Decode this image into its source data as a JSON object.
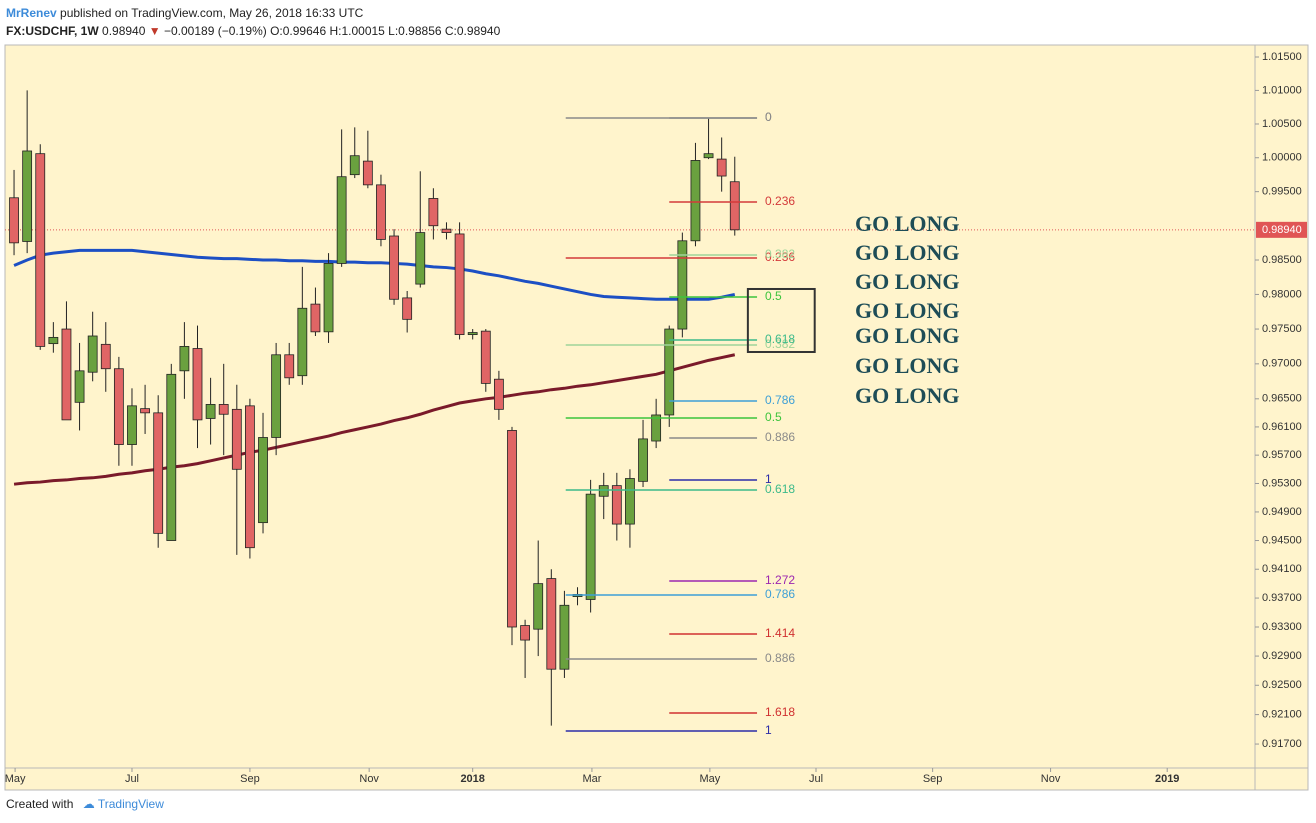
{
  "header": {
    "author": "MrRenev",
    "published": "published on TradingView.com, May 26, 2018 16:33 UTC",
    "symbol": "FX:USDCHF, 1W",
    "last": "0.98940",
    "arrow": "▼",
    "change": "−0.00189 (−0.19%)",
    "ohlc": "O:0.99646 H:1.00015 L:0.98856 C:0.98940"
  },
  "footer": {
    "created": "Created with",
    "brand": "TradingView"
  },
  "chart_data": {
    "type": "candlestick",
    "log_scale": true,
    "up_color": "#6aa13f",
    "down_color": "#e06565",
    "background": "#fff4cc",
    "categories": [
      null,
      null,
      null,
      null,
      null,
      null,
      null,
      null,
      null,
      null,
      null,
      null,
      null,
      null,
      null,
      null,
      null,
      null,
      null,
      null,
      null,
      null,
      null,
      null,
      null,
      null,
      null,
      null,
      null,
      null,
      null,
      null,
      null,
      null,
      null,
      null,
      null,
      null,
      null,
      null,
      null,
      null,
      null,
      null,
      null,
      null,
      null,
      null,
      null,
      null,
      null,
      null,
      null,
      null,
      null,
      null
    ],
    "open": [
      0.9941,
      0.9877,
      1.0006,
      0.9729,
      0.975,
      0.9645,
      0.9688,
      0.9728,
      0.9693,
      0.9585,
      0.9636,
      0.963,
      0.945,
      0.969,
      0.9722,
      0.9622,
      0.9642,
      0.9635,
      0.964,
      0.9475,
      0.9595,
      0.9713,
      0.9683,
      0.9786,
      0.9746,
      0.9845,
      0.9975,
      0.9995,
      0.996,
      0.9885,
      0.9795,
      0.9815,
      0.994,
      0.9895,
      0.9888,
      0.9742,
      0.9747,
      0.9678,
      0.9605,
      0.9332,
      0.9327,
      0.9397,
      0.9272,
      0.9372,
      0.9368,
      0.9512,
      0.9527,
      0.9473,
      0.9533,
      0.959,
      0.9627,
      0.975,
      0.9878,
      1.0,
      0.9998,
      0.99646
    ],
    "high": [
      0.9982,
      1.01,
      1.002,
      0.976,
      0.979,
      0.973,
      0.9775,
      0.976,
      0.971,
      0.9665,
      0.967,
      0.9655,
      0.97,
      0.976,
      0.9755,
      0.968,
      0.97,
      0.967,
      0.965,
      0.963,
      0.973,
      0.973,
      0.984,
      0.981,
      0.986,
      1.0042,
      1.0045,
      1.004,
      0.9975,
      0.9895,
      0.9805,
      0.998,
      0.9955,
      0.9905,
      0.9905,
      0.975,
      0.975,
      0.969,
      0.961,
      0.934,
      0.945,
      0.941,
      0.938,
      0.9385,
      0.9535,
      0.9545,
      0.9545,
      0.955,
      0.962,
      0.965,
      0.9755,
      0.989,
      1.0022,
      1.0058,
      1.003,
      1.00015
    ],
    "low": [
      0.9857,
      0.986,
      0.972,
      0.9716,
      0.962,
      0.9605,
      0.9675,
      0.966,
      0.9555,
      0.9555,
      0.96,
      0.944,
      0.945,
      0.965,
      0.958,
      0.9585,
      0.957,
      0.943,
      0.9425,
      0.946,
      0.957,
      0.967,
      0.967,
      0.974,
      0.973,
      0.984,
      0.997,
      0.9955,
      0.987,
      0.9785,
      0.9745,
      0.981,
      0.988,
      0.988,
      0.9735,
      0.9735,
      0.966,
      0.962,
      0.9305,
      0.926,
      0.929,
      0.9195,
      0.926,
      0.936,
      0.935,
      0.948,
      0.945,
      0.944,
      0.9525,
      0.958,
      0.961,
      0.9738,
      0.987,
      0.9998,
      0.995,
      0.98856
    ],
    "close": [
      0.9875,
      1.001,
      0.9725,
      0.9738,
      0.962,
      0.969,
      0.974,
      0.9693,
      0.9585,
      0.964,
      0.963,
      0.946,
      0.9685,
      0.9725,
      0.962,
      0.9642,
      0.9628,
      0.955,
      0.944,
      0.9595,
      0.9713,
      0.968,
      0.978,
      0.9746,
      0.9845,
      0.9972,
      1.0003,
      0.996,
      0.988,
      0.9793,
      0.9764,
      0.989,
      0.99,
      0.989,
      0.9742,
      0.9745,
      0.9672,
      0.9635,
      0.933,
      0.9312,
      0.939,
      0.9272,
      0.936,
      0.9375,
      0.9515,
      0.9527,
      0.9473,
      0.9537,
      0.9593,
      0.9627,
      0.975,
      0.9878,
      0.9996,
      1.0006,
      0.9973,
      0.9894
    ],
    "series": [
      {
        "color": "#1c4fc4",
        "width": 3,
        "values": [
          0.9842,
          0.985,
          0.9857,
          0.986,
          0.9862,
          0.9864,
          0.9864,
          0.9864,
          0.9864,
          0.9864,
          0.9862,
          0.986,
          0.9858,
          0.9856,
          0.9854,
          0.9853,
          0.9852,
          0.9852,
          0.9851,
          0.985,
          0.985,
          0.9849,
          0.9849,
          0.9848,
          0.9848,
          0.9847,
          0.9847,
          0.9846,
          0.9846,
          0.9845,
          0.9844,
          0.9842,
          0.984,
          0.9839,
          0.9837,
          0.9834,
          0.983,
          0.9827,
          0.9823,
          0.9819,
          0.9816,
          0.9812,
          0.9808,
          0.9804,
          0.98,
          0.9797,
          0.9796,
          0.9795,
          0.9794,
          0.9793,
          0.9793,
          0.9793,
          0.9793,
          0.9793,
          0.9796,
          0.98
        ]
      },
      {
        "color": "#7a1a2a",
        "width": 3,
        "values": [
          0.9529,
          0.9531,
          0.9532,
          0.9534,
          0.9535,
          0.9537,
          0.9538,
          0.954,
          0.9543,
          0.9545,
          0.9548,
          0.955,
          0.9553,
          0.9555,
          0.9558,
          0.9562,
          0.9566,
          0.957,
          0.9574,
          0.9577,
          0.9581,
          0.9585,
          0.9589,
          0.9593,
          0.9597,
          0.9602,
          0.9606,
          0.961,
          0.9614,
          0.9619,
          0.9623,
          0.9628,
          0.9634,
          0.9639,
          0.9644,
          0.9647,
          0.965,
          0.9652,
          0.9655,
          0.9658,
          0.966,
          0.9663,
          0.9665,
          0.9668,
          0.967,
          0.9673,
          0.9676,
          0.9679,
          0.9682,
          0.9685,
          0.969,
          0.9695,
          0.97,
          0.9705,
          0.9709,
          0.9713
        ]
      }
    ],
    "xlim": [
      -0.69,
      94.7
    ],
    "xticks": [
      {
        "value": 0.08,
        "label": "May"
      },
      {
        "value": 9.0,
        "label": "Jul"
      },
      {
        "value": 18.0,
        "label": "Sep"
      },
      {
        "value": 27.1,
        "label": "Nov"
      },
      {
        "value": 35.0,
        "label": "2018"
      },
      {
        "value": 44.1,
        "label": "Mar"
      },
      {
        "value": 53.1,
        "label": "May"
      },
      {
        "value": 61.2,
        "label": "Jul"
      },
      {
        "value": 70.1,
        "label": "Sep"
      },
      {
        "value": 79.1,
        "label": "Nov"
      },
      {
        "value": 88.0,
        "label": "2019"
      }
    ],
    "ylim": [
      0.91376,
      1.0168
    ],
    "yticks": [
      {
        "value": 1.015,
        "label": "1.01500"
      },
      {
        "value": 1.01,
        "label": "1.01000"
      },
      {
        "value": 1.005,
        "label": "1.00500"
      },
      {
        "value": 1.0,
        "label": "1.00000"
      },
      {
        "value": 0.995,
        "label": "0.99500"
      },
      {
        "value": 0.985,
        "label": "0.98500"
      },
      {
        "value": 0.98,
        "label": "0.98000"
      },
      {
        "value": 0.975,
        "label": "0.97500"
      },
      {
        "value": 0.97,
        "label": "0.97000"
      },
      {
        "value": 0.965,
        "label": "0.96500"
      },
      {
        "value": 0.961,
        "label": "0.96100"
      },
      {
        "value": 0.957,
        "label": "0.95700"
      },
      {
        "value": 0.953,
        "label": "0.95300"
      },
      {
        "value": 0.949,
        "label": "0.94900"
      },
      {
        "value": 0.945,
        "label": "0.94500"
      },
      {
        "value": 0.941,
        "label": "0.94100"
      },
      {
        "value": 0.937,
        "label": "0.93700"
      },
      {
        "value": 0.933,
        "label": "0.93300"
      },
      {
        "value": 0.929,
        "label": "0.92900"
      },
      {
        "value": 0.925,
        "label": "0.92500"
      },
      {
        "value": 0.921,
        "label": "0.92100"
      },
      {
        "value": 0.917,
        "label": "0.91700"
      }
    ],
    "last_price": {
      "value": 0.9894,
      "label": "0.98940",
      "color": "#e05555"
    },
    "fib_sets": [
      {
        "x": [
          42.1,
          56.7
        ],
        "levels": [
          {
            "level": 0,
            "price": 1.00589,
            "color": "#8a8a8a"
          },
          {
            "level": 0.236,
            "price": 0.98529,
            "color": "#d43a3a"
          },
          {
            "level": 0.382,
            "price": 0.9727,
            "color": "#9fd49a"
          },
          {
            "level": 0.5,
            "price": 0.96226,
            "color": "#3cc43c"
          },
          {
            "level": 0.618,
            "price": 0.95208,
            "color": "#3cba8a"
          },
          {
            "level": 0.786,
            "price": 0.93742,
            "color": "#3d9fd6"
          },
          {
            "level": 0.886,
            "price": 0.9286,
            "color": "#8a8a8a"
          },
          {
            "level": 1,
            "price": 0.91877,
            "color": "#2c2ca8"
          }
        ]
      },
      {
        "x": [
          50.0,
          56.7
        ],
        "levels": [
          {
            "level": 0,
            "price": 1.00589,
            "color": "#8a8a8a"
          },
          {
            "level": 0.236,
            "price": 0.99348,
            "color": "#d43a3a"
          },
          {
            "level": 0.382,
            "price": 0.98573,
            "color": "#9fd49a"
          },
          {
            "level": 0.5,
            "price": 0.97963,
            "color": "#3cc43c"
          },
          {
            "level": 0.618,
            "price": 0.97342,
            "color": "#3cba8a"
          },
          {
            "level": 0.786,
            "price": 0.96468,
            "color": "#3d9fd6"
          },
          {
            "level": 0.886,
            "price": 0.95942,
            "color": "#8a8a8a"
          },
          {
            "level": 1,
            "price": 0.95349,
            "color": "#2c2ca8"
          },
          {
            "level": 1.272,
            "price": 0.93936,
            "color": "#9c27b0"
          },
          {
            "level": 1.414,
            "price": 0.93204,
            "color": "#d03030"
          },
          {
            "level": 1.618,
            "price": 0.92122,
            "color": "#d03030"
          }
        ]
      }
    ],
    "box": {
      "x": [
        56.0,
        61.1
      ],
      "y": [
        0.98079,
        0.9717
      ]
    },
    "annotations": [
      "GO LONG",
      "GO LONG",
      "GO LONG",
      "GO LONG",
      "GO LONG",
      "GO LONG",
      "GO LONG"
    ]
  }
}
